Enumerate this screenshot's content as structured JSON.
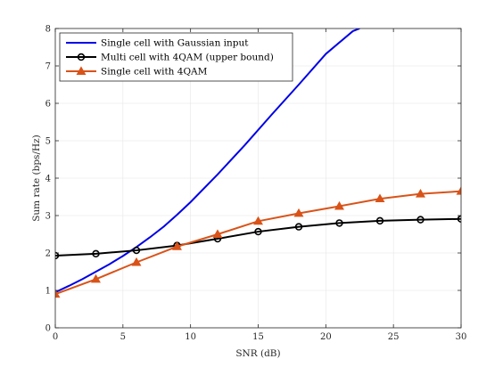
{
  "chart_data": {
    "type": "line",
    "title": "",
    "xlabel": "SNR (dB)",
    "ylabel": "Sum rate (bps/Hz)",
    "xlim": [
      0,
      30
    ],
    "ylim": [
      0,
      8
    ],
    "xticks": [
      0,
      5,
      10,
      15,
      20,
      25,
      30
    ],
    "yticks": [
      0,
      1,
      2,
      3,
      4,
      5,
      6,
      7,
      8
    ],
    "grid": true,
    "legend_position": "top-left",
    "series": [
      {
        "name": "Single cell with Gaussian input",
        "color": "#0000e6",
        "marker": "none",
        "x": [
          0,
          1,
          2,
          3,
          4,
          5,
          6,
          7,
          8,
          9,
          10,
          12,
          14,
          16,
          18,
          20,
          22,
          22.5
        ],
        "y": [
          0.95,
          1.12,
          1.3,
          1.5,
          1.7,
          1.92,
          2.16,
          2.42,
          2.7,
          3.02,
          3.36,
          4.1,
          4.88,
          5.7,
          6.5,
          7.32,
          7.93,
          8.0
        ]
      },
      {
        "name": "Multi cell with 4QAM (upper bound)",
        "color": "#000000",
        "marker": "circle",
        "x": [
          0,
          3,
          6,
          9,
          12,
          15,
          18,
          21,
          24,
          27,
          30
        ],
        "y": [
          1.93,
          1.98,
          2.07,
          2.2,
          2.38,
          2.57,
          2.7,
          2.8,
          2.86,
          2.89,
          2.91
        ]
      },
      {
        "name": "Single cell with 4QAM",
        "color": "#d95319",
        "marker": "triangle",
        "x": [
          0,
          3,
          6,
          9,
          12,
          15,
          18,
          21,
          24,
          27,
          30
        ],
        "y": [
          0.9,
          1.3,
          1.75,
          2.17,
          2.5,
          2.85,
          3.06,
          3.25,
          3.45,
          3.58,
          3.65
        ]
      }
    ]
  }
}
